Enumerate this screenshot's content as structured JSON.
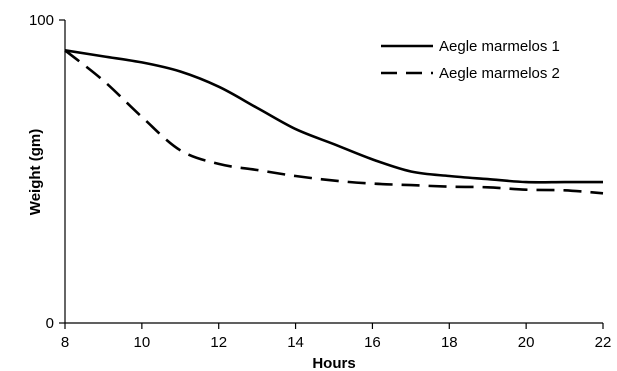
{
  "chart_data": {
    "type": "line",
    "xlabel": "Hours",
    "ylabel": "Weight (gm)",
    "xlim": [
      8,
      22
    ],
    "ylim": [
      0,
      100
    ],
    "x_ticks": [
      8,
      10,
      12,
      14,
      16,
      18,
      20,
      22
    ],
    "x_tick_labels": [
      "8",
      "10",
      "12",
      "14",
      "16",
      "18",
      "20",
      "22"
    ],
    "y_ticks": [
      0,
      100
    ],
    "y_tick_labels": [
      "0",
      "100"
    ],
    "grid": false,
    "legend_position": "top-right",
    "series": [
      {
        "name": "Aegle marmelos 1",
        "line_style": "solid",
        "color": "#000000",
        "x": [
          8,
          9,
          10,
          11,
          12,
          13,
          14,
          15,
          16,
          17,
          18,
          19,
          20,
          21,
          22
        ],
        "values": [
          90,
          88,
          86,
          83,
          78,
          71,
          64,
          59,
          54,
          50,
          48.5,
          47.5,
          46.5,
          46.5,
          46.5
        ]
      },
      {
        "name": "Aegle marmelos 2",
        "line_style": "dashed",
        "color": "#000000",
        "x": [
          8,
          9,
          10,
          11,
          12,
          13,
          14,
          15,
          16,
          17,
          18,
          19,
          20,
          21,
          22
        ],
        "values": [
          90,
          80,
          68,
          57,
          52.5,
          50.5,
          48.5,
          47,
          46,
          45.5,
          45,
          44.8,
          44,
          43.8,
          42.8
        ]
      }
    ]
  }
}
